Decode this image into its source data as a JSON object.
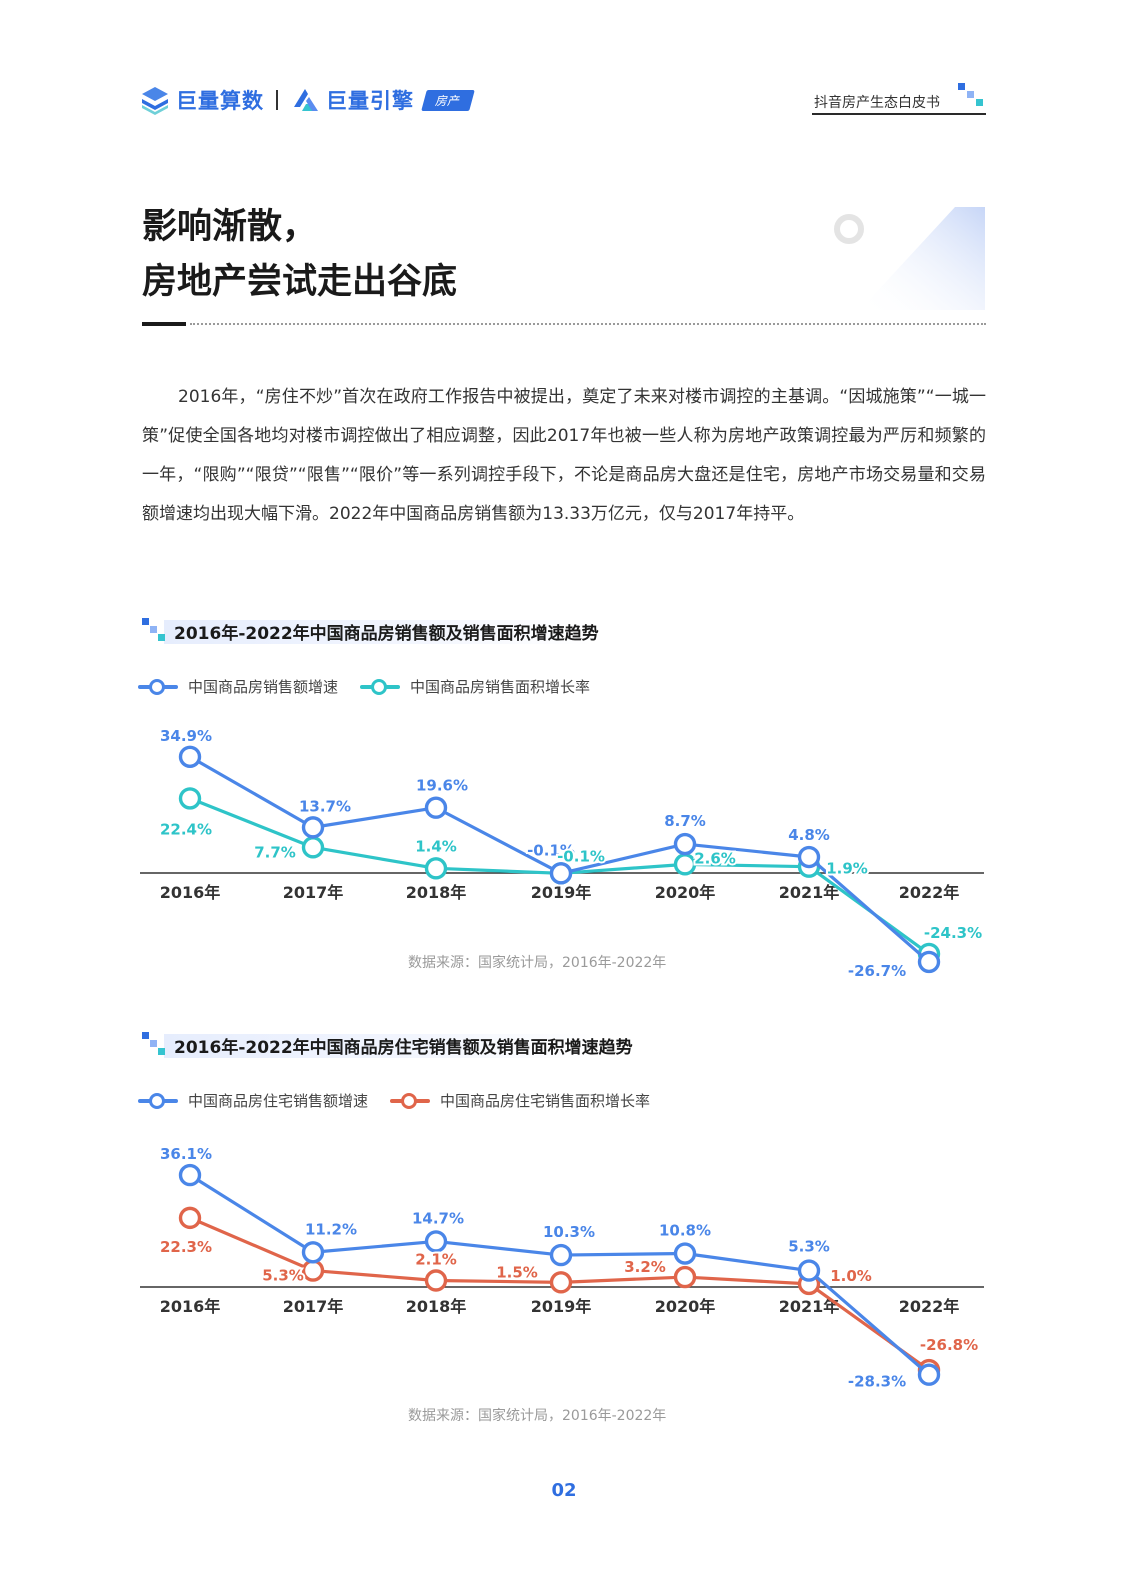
{
  "header": {
    "brand1": "巨量算数",
    "brand2": "巨量引擎",
    "tag": "房产",
    "doc_title": "抖音房产生态白皮书"
  },
  "title": {
    "line1": "影响渐散，",
    "line2": "房地产尝试走出谷底"
  },
  "body": "2016年，“房住不炒”首次在政府工作报告中被提出，奠定了未来对楼市调控的主基调。“因城施策”“一城一策”促使全国各地均对楼市调控做出了相应调整，因此2017年也被一些人称为房地产政策调控最为严厉和频繁的一年，“限购”“限贷”“限售”“限价”等一系列调控手段下，不论是商品房大盘还是住宅，房地产市场交易量和交易额增速均出现大幅下滑。2022年中国商品房销售额为13.33万亿元，仅与2017年持平。",
  "chart_data": [
    {
      "type": "line",
      "title": "2016年-2022年中国商品房销售额及销售面积增速趋势",
      "categories": [
        "2016年",
        "2017年",
        "2018年",
        "2019年",
        "2020年",
        "2021年",
        "2022年"
      ],
      "series": [
        {
          "name": "中国商品房销售额增速",
          "color": "#4a86e8",
          "values": [
            34.9,
            13.7,
            19.6,
            -0.1,
            8.7,
            4.8,
            -26.7
          ],
          "labels": [
            "34.9%",
            "13.7%",
            "19.6%",
            "-0.1%",
            "8.7%",
            "4.8%",
            "-26.7%"
          ]
        },
        {
          "name": "中国商品房销售面积增长率",
          "color": "#2ec4c8",
          "values": [
            22.4,
            7.7,
            1.4,
            -0.1,
            2.6,
            1.9,
            -24.3
          ],
          "labels": [
            "22.4%",
            "7.7%",
            "1.4%",
            "-0.1%",
            "2.6%",
            "1.9%",
            "-24.3%"
          ]
        }
      ],
      "source": "数据来源：国家统计局，2016年-2022年"
    },
    {
      "type": "line",
      "title": "2016年-2022年中国商品房住宅销售额及销售面积增速趋势",
      "categories": [
        "2016年",
        "2017年",
        "2018年",
        "2019年",
        "2020年",
        "2021年",
        "2022年"
      ],
      "series": [
        {
          "name": "中国商品房住宅销售额增速",
          "color": "#4a86e8",
          "values": [
            36.1,
            11.2,
            14.7,
            10.3,
            10.8,
            5.3,
            -28.3
          ],
          "labels": [
            "36.1%",
            "11.2%",
            "14.7%",
            "10.3%",
            "10.8%",
            "5.3%",
            "-28.3%"
          ]
        },
        {
          "name": "中国商品房住宅销售面积增长率",
          "color": "#e0654a",
          "values": [
            22.3,
            5.3,
            2.1,
            1.5,
            3.2,
            1.0,
            -26.8
          ],
          "labels": [
            "22.3%",
            "5.3%",
            "2.1%",
            "1.5%",
            "3.2%",
            "1.0%",
            "-26.8%"
          ]
        }
      ],
      "source": "数据来源：国家统计局，2016年-2022年"
    }
  ],
  "page_number": "02"
}
